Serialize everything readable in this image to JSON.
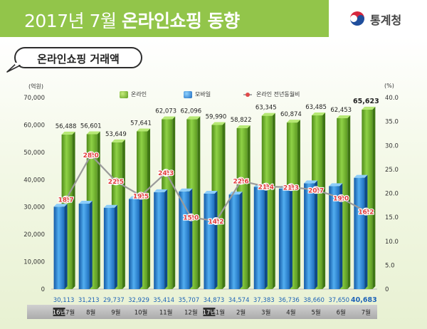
{
  "header": {
    "title_prefix": "2017년 7월",
    "title_bold": "온라인쇼핑 동향",
    "org": "통계청",
    "colors": {
      "header_green": "#92c54a",
      "emblem_red": "#d7263d",
      "emblem_blue": "#1f4e9c"
    }
  },
  "section": {
    "badge": "온라인쇼핑 거래액"
  },
  "chart_data": {
    "type": "bar",
    "title": "",
    "left_axis_unit": "(억원)",
    "right_axis_unit": "(%)",
    "ylim": [
      0,
      70000
    ],
    "y2lim": [
      0,
      40
    ],
    "yticks": [
      "0",
      "10,000",
      "20,000",
      "30,000",
      "40,000",
      "50,000",
      "60,000",
      "70,000"
    ],
    "y2ticks": [
      "0",
      "5.0",
      "10.0",
      "15.0",
      "20.0",
      "25.0",
      "30.0",
      "35.0",
      "40.0"
    ],
    "legend_position": "top",
    "grid": false,
    "categories": [
      "7월",
      "8월",
      "9월",
      "10월",
      "11월",
      "12월",
      "1월",
      "2월",
      "3월",
      "4월",
      "5월",
      "6월",
      "7월"
    ],
    "year_markers": [
      {
        "label": "16년",
        "index": 0
      },
      {
        "label": "17년",
        "index": 6
      }
    ],
    "series": [
      {
        "name": "온라인",
        "kind": "bar",
        "color": "#6db32f",
        "values": [
          56488,
          56601,
          53649,
          57641,
          62073,
          62096,
          59990,
          58822,
          63345,
          60874,
          63485,
          62453,
          65623
        ],
        "labels": [
          "56,488",
          "56,601",
          "53,649",
          "57,641",
          "62,073",
          "62,096",
          "59,990",
          "58,822",
          "63,345",
          "60,874",
          "63,485",
          "62,453",
          "65,623"
        ]
      },
      {
        "name": "모바일",
        "kind": "bar",
        "color": "#2b84d4",
        "values": [
          30113,
          31213,
          29737,
          32929,
          35414,
          35707,
          34873,
          34574,
          37383,
          36736,
          38660,
          37650,
          40683
        ],
        "labels": [
          "30,113",
          "31,213",
          "29,737",
          "32,929",
          "35,414",
          "35,707",
          "34,873",
          "34,574",
          "37,383",
          "36,736",
          "38,660",
          "37,650",
          "40,683"
        ]
      },
      {
        "name": "온라인 전년동월비",
        "kind": "line",
        "axis": "right",
        "color": "#9a9a9a",
        "values": [
          18.7,
          28.0,
          22.5,
          19.5,
          24.3,
          15.0,
          14.2,
          22.6,
          21.4,
          21.3,
          20.7,
          19.0,
          16.2
        ],
        "labels": [
          "18.7",
          "28.0",
          "22.5",
          "19.5",
          "24.3",
          "15.0",
          "14.2",
          "22.6",
          "21.4",
          "21.3",
          "20.7",
          "19.0",
          "16.2"
        ]
      }
    ]
  }
}
